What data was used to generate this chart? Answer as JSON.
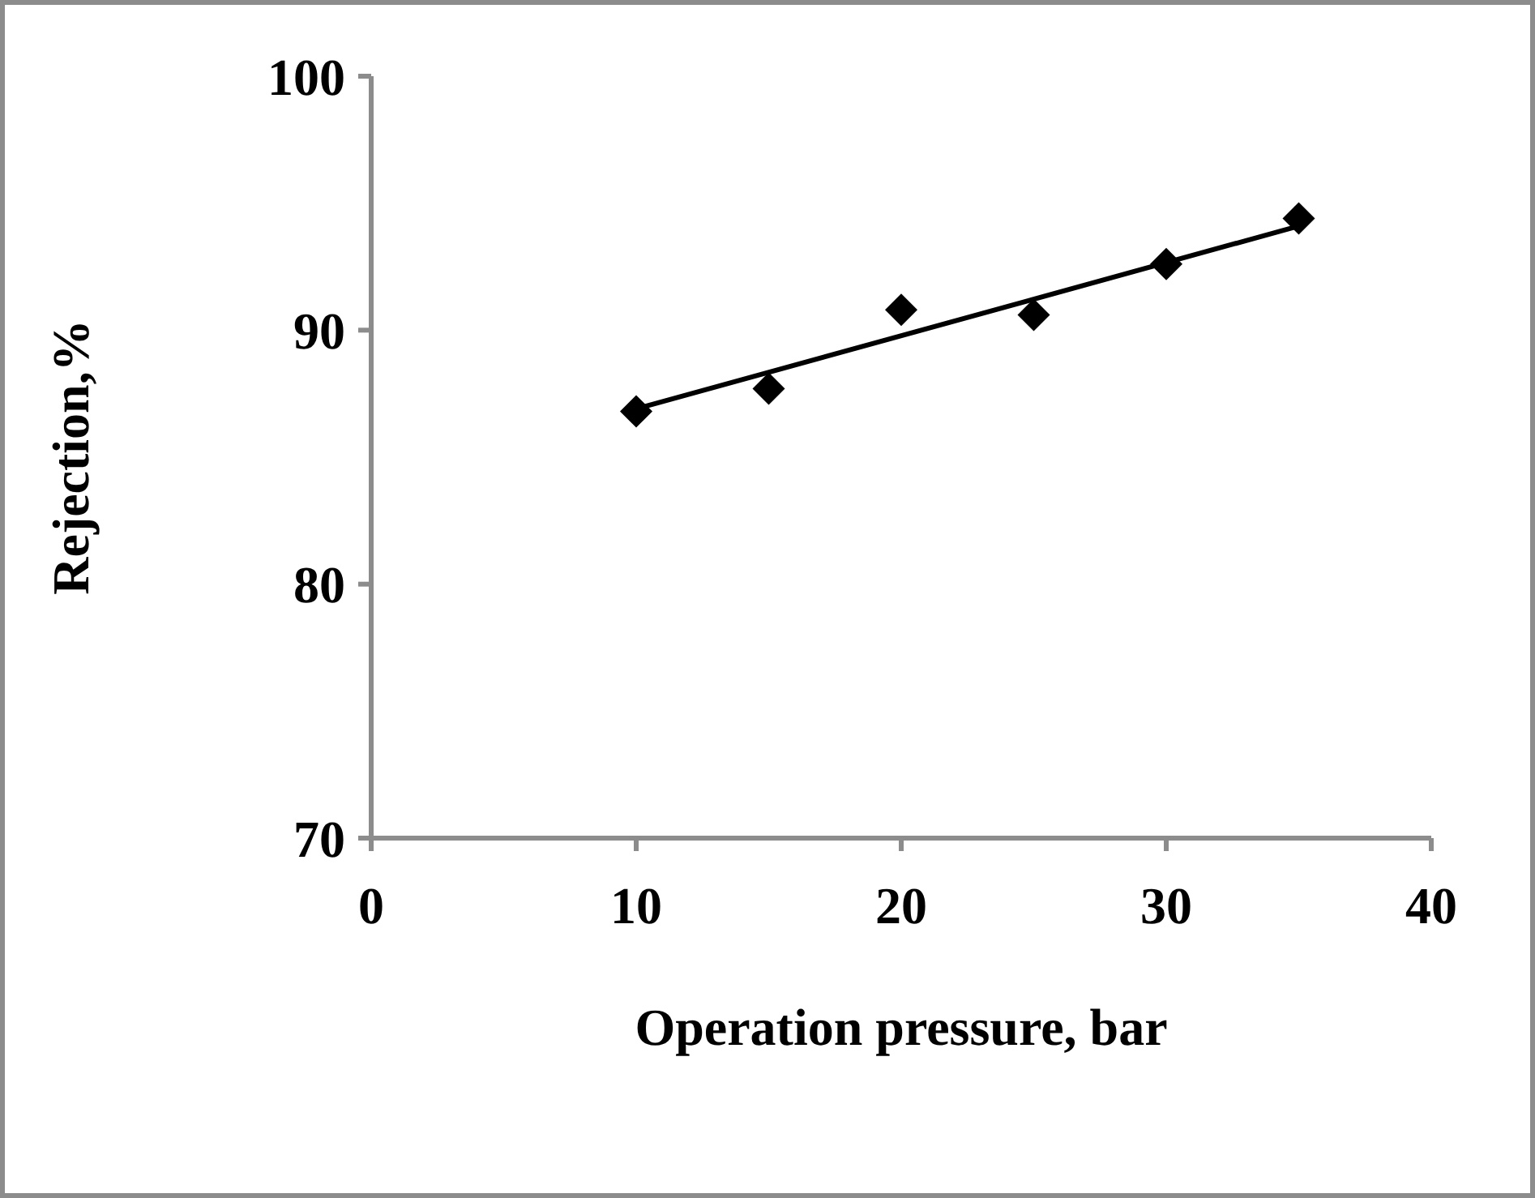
{
  "chart_data": {
    "type": "scatter",
    "xlabel": "Operation pressure, bar",
    "ylabel": "Rejection,%",
    "xlim": [
      0,
      40
    ],
    "xticks": [
      0,
      10,
      20,
      30,
      40
    ],
    "ylim": [
      70,
      100
    ],
    "yticks": [
      70,
      80,
      90,
      100
    ],
    "grid": false,
    "legend": false,
    "marker": "diamond",
    "x": [
      10,
      15,
      20,
      25,
      30,
      35
    ],
    "series": [
      {
        "color": "#000000",
        "values": [
          86.8,
          87.7,
          90.8,
          90.6,
          92.6,
          94.4
        ]
      },
      {
        "type": "line",
        "color": "#000000",
        "x": [
          10,
          35
        ],
        "values": [
          86.9,
          94.1
        ],
        "marker": "none",
        "line_style": "solid"
      }
    ]
  }
}
